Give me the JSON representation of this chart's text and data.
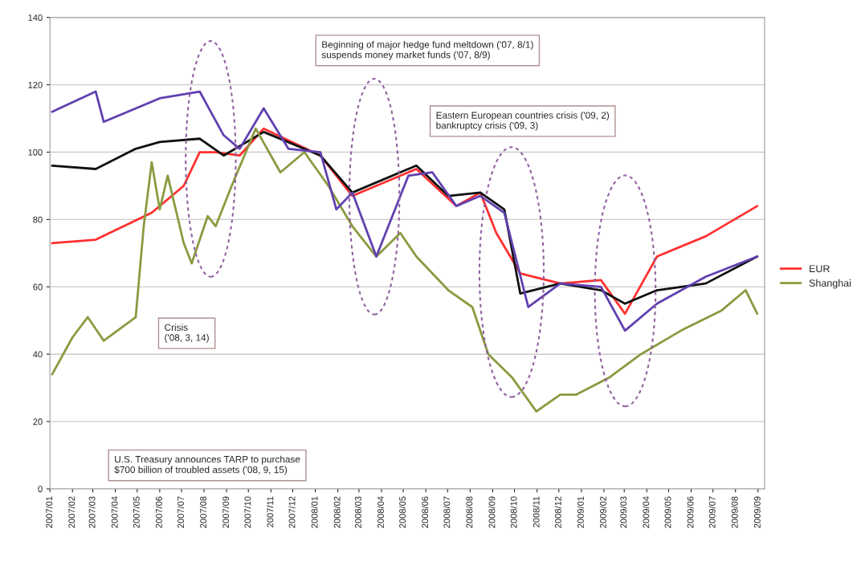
{
  "chart_data": {
    "type": "line",
    "ylim": [
      0,
      140
    ],
    "yticks": [
      0,
      20,
      40,
      60,
      80,
      100,
      120,
      140
    ],
    "xlim": [
      "2007-01-01",
      "2009-09-10"
    ],
    "xticks": [
      {
        "value": "2007-01-01",
        "label": "2007/01"
      },
      {
        "value": "2007-02-01",
        "label": "2007/02"
      },
      {
        "value": "2007-03-01",
        "label": "2007/03"
      },
      {
        "value": "2007-04-01",
        "label": "2007/04"
      },
      {
        "value": "2007-05-01",
        "label": "2007/05"
      },
      {
        "value": "2007-06-01",
        "label": "2007/06"
      },
      {
        "value": "2007-07-01",
        "label": "2007/07"
      },
      {
        "value": "2007-08-01",
        "label": "2007/08"
      },
      {
        "value": "2007-09-01",
        "label": "2007/09"
      },
      {
        "value": "2007-10-01",
        "label": "2007/10"
      },
      {
        "value": "2007-11-01",
        "label": "2007/11"
      },
      {
        "value": "2007-12-01",
        "label": "2007/12"
      },
      {
        "value": "2008-01-01",
        "label": "2008/01"
      },
      {
        "value": "2008-02-01",
        "label": "2008/02"
      },
      {
        "value": "2008-03-01",
        "label": "2008/03"
      },
      {
        "value": "2008-04-01",
        "label": "2008/04"
      },
      {
        "value": "2008-05-01",
        "label": "2008/05"
      },
      {
        "value": "2008-06-01",
        "label": "2008/06"
      },
      {
        "value": "2008-07-01",
        "label": "2008/07"
      },
      {
        "value": "2008-08-01",
        "label": "2008/08"
      },
      {
        "value": "2008-09-01",
        "label": "2008/09"
      },
      {
        "value": "2008-10-01",
        "label": "2008/10"
      },
      {
        "value": "2008-11-01",
        "label": "2008/11"
      },
      {
        "value": "2008-12-01",
        "label": "2008/12"
      },
      {
        "value": "2009-01-01",
        "label": "2009/01"
      },
      {
        "value": "2009-02-01",
        "label": "2009/02"
      },
      {
        "value": "2009-03-01",
        "label": "2009/03"
      },
      {
        "value": "2009-04-01",
        "label": "2009/04"
      },
      {
        "value": "2009-05-01",
        "label": "2009/05"
      },
      {
        "value": "2009-06-01",
        "label": "2009/06"
      },
      {
        "value": "2009-07-01",
        "label": "2009/07"
      },
      {
        "value": "2009-08-01",
        "label": "2009/08"
      },
      {
        "value": "2009-09-01",
        "label": "2009/09"
      }
    ],
    "grid": "y",
    "legend": "right",
    "series": [
      {
        "name": "EUR",
        "color": "#ff3030",
        "x": [
          "2007-01-04",
          "2007-03-05",
          "2007-05-21",
          "2007-07-04",
          "2007-07-26",
          "2007-08-17",
          "2007-09-19",
          "2007-10-22",
          "2008-01-08",
          "2008-02-21",
          "2008-05-19",
          "2008-07-13",
          "2008-08-15",
          "2008-09-06",
          "2008-10-09",
          "2008-12-03",
          "2009-01-28",
          "2009-03-02",
          "2009-04-15",
          "2009-06-21",
          "2009-08-31"
        ],
        "values": [
          73,
          74,
          82,
          90,
          100,
          100,
          99,
          107,
          99,
          87,
          95,
          84,
          88,
          76,
          64,
          61,
          62,
          52,
          69,
          75,
          84
        ]
      },
      {
        "color": "#101010",
        "x": [
          "2007-01-04",
          "2007-03-05",
          "2007-04-29",
          "2007-06-01",
          "2007-07-26",
          "2007-08-28",
          "2007-10-22",
          "2008-01-08",
          "2008-02-21",
          "2008-05-19",
          "2008-07-02",
          "2008-08-15",
          "2008-09-17",
          "2008-10-09",
          "2008-12-03",
          "2009-01-28",
          "2009-03-02",
          "2009-04-15",
          "2009-06-21",
          "2009-08-31"
        ],
        "values": [
          96,
          95,
          101,
          103,
          104,
          99,
          106,
          99,
          88,
          96,
          87,
          88,
          83,
          58,
          61,
          59,
          55,
          59,
          61,
          69
        ]
      },
      {
        "name": "Shanghai",
        "color": "#8a9a40",
        "x": [
          "2007-01-04",
          "2007-02-01",
          "2007-02-22",
          "2007-03-16",
          "2007-04-29",
          "2007-05-10",
          "2007-05-21",
          "2007-06-01",
          "2007-06-12",
          "2007-07-04",
          "2007-07-15",
          "2007-08-06",
          "2007-08-17",
          "2007-09-08",
          "2007-10-11",
          "2007-11-14",
          "2007-12-17",
          "2008-01-19",
          "2008-02-21",
          "2008-03-25",
          "2008-04-27",
          "2008-05-19",
          "2008-07-02",
          "2008-08-04",
          "2008-08-26",
          "2008-09-28",
          "2008-10-31",
          "2008-12-03",
          "2008-12-25",
          "2009-02-08",
          "2009-03-24",
          "2009-05-18",
          "2009-07-13",
          "2009-08-15",
          "2009-08-31"
        ],
        "values": [
          34,
          45,
          51,
          44,
          51,
          78,
          97,
          83,
          93,
          73,
          67,
          81,
          78,
          90,
          107,
          94,
          100,
          90,
          78,
          69,
          76,
          69,
          59,
          54,
          40,
          33,
          23,
          28,
          28,
          33,
          40,
          47,
          53,
          59,
          52
        ]
      },
      {
        "color": "#6040b0",
        "x": [
          "2007-01-04",
          "2007-03-05",
          "2007-03-16",
          "2007-06-01",
          "2007-07-26",
          "2007-08-28",
          "2007-09-19",
          "2007-10-22",
          "2007-11-25",
          "2008-01-08",
          "2008-01-30",
          "2008-02-21",
          "2008-03-25",
          "2008-05-08",
          "2008-06-10",
          "2008-07-13",
          "2008-08-15",
          "2008-09-17",
          "2008-10-20",
          "2008-12-03",
          "2009-01-28",
          "2009-03-02",
          "2009-04-15",
          "2009-06-21",
          "2009-08-31"
        ],
        "values": [
          112,
          118,
          109,
          116,
          118,
          105,
          101,
          113,
          101,
          100,
          83,
          88,
          69,
          93,
          94,
          84,
          87,
          82,
          54,
          61,
          60,
          47,
          55,
          63,
          69
        ]
      }
    ],
    "annotations": [
      "Beginning of major hedge fund meltdown ('07, 8/1)\nsuspends money market funds ('07, 8/9)",
      "Eastern European countries crisis ('09, 2)\nbankruptcy crisis ('09, 3)",
      "Crisis\n('08, 3, 14)",
      "U.S. Treasury announces TARP to purchase\n$700 billion of troubled assets ('08, 9, 15)"
    ]
  }
}
